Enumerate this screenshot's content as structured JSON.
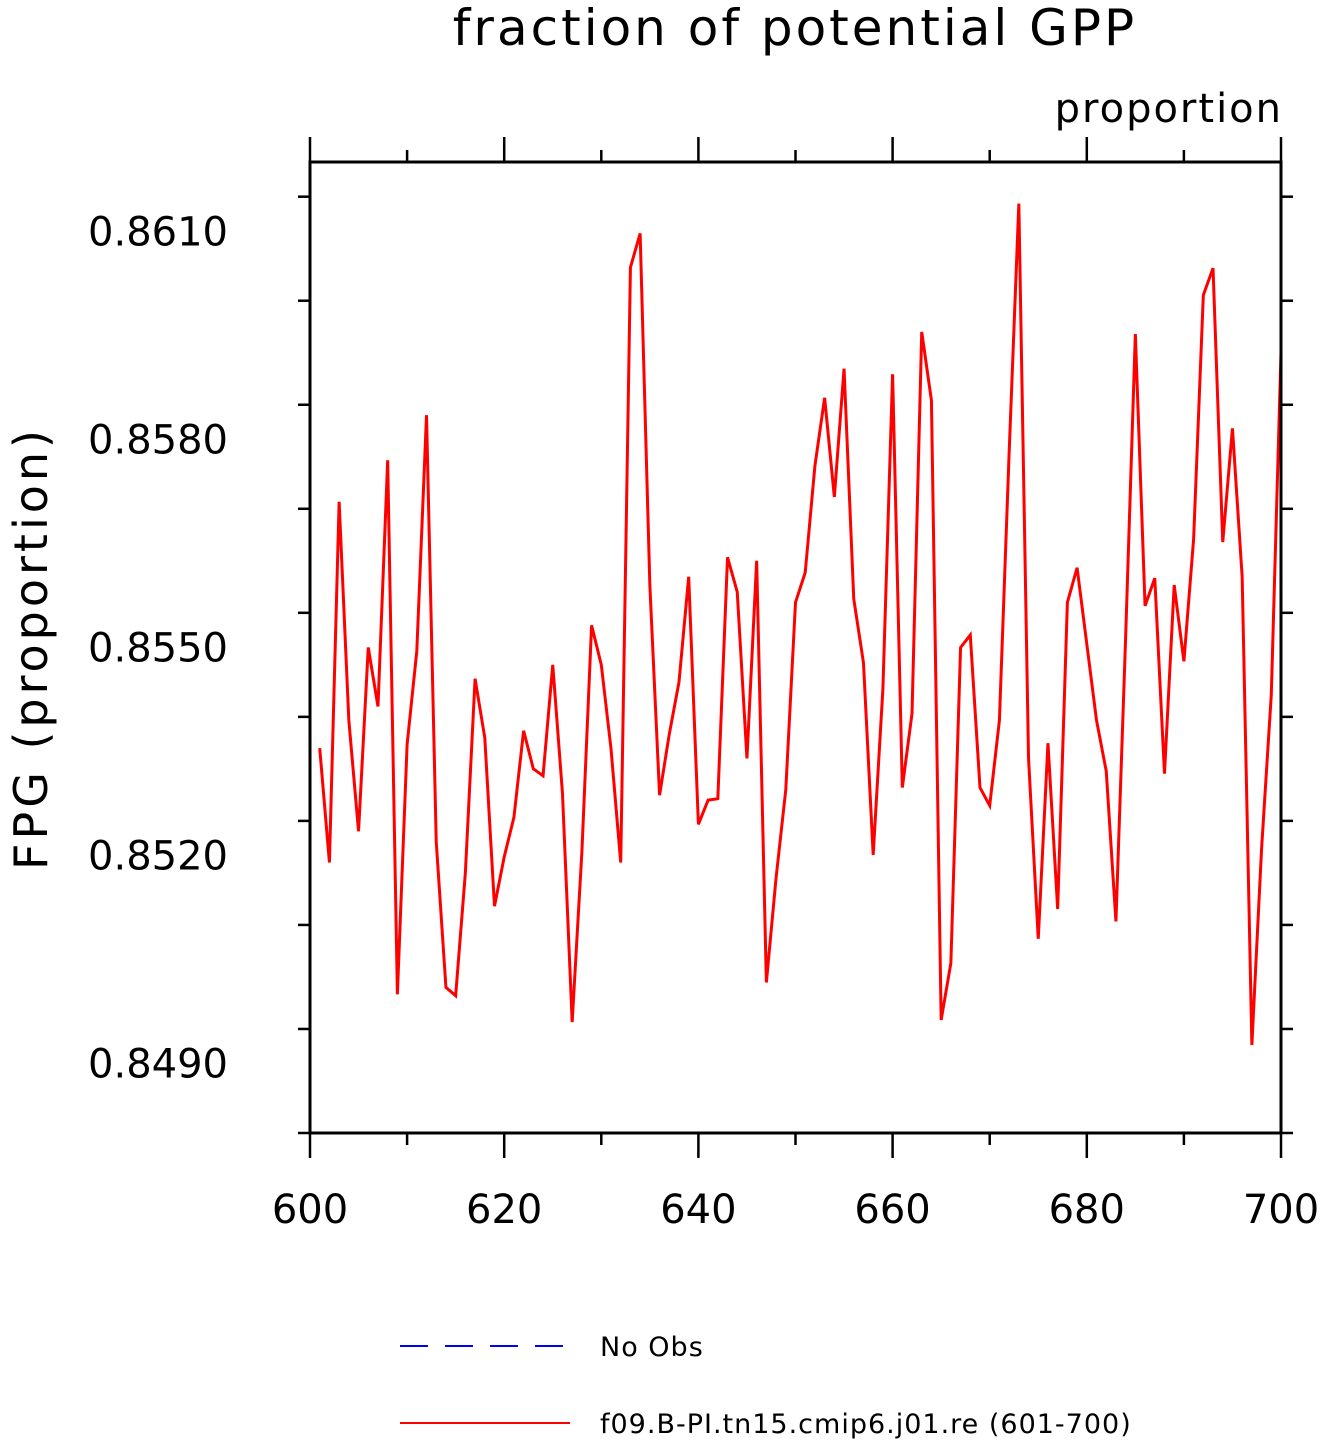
{
  "chart_data": {
    "type": "line",
    "title": "fraction of potential GPP",
    "subtitle": "proportion",
    "ylabel": "FPG   (proportion)",
    "xlabel": "",
    "xlim": [
      600,
      700
    ],
    "ylim": [
      0.848,
      0.862
    ],
    "xticks": [
      600,
      620,
      640,
      660,
      680,
      700
    ],
    "xtick_labels": [
      "600",
      "620",
      "640",
      "660",
      "680",
      "700"
    ],
    "yticks": [
      0.849,
      0.852,
      0.855,
      0.858,
      0.861
    ],
    "ytick_labels": [
      "0.8490",
      "0.8520",
      "0.8550",
      "0.8580",
      "0.8610"
    ],
    "legend_position": "bottom",
    "series": [
      {
        "name": "No Obs",
        "color": "#0000ff",
        "style": "dashed",
        "x": [],
        "values": []
      },
      {
        "name": "f09.B-PI.tn15.cmip6.j01.re (601-700)",
        "color": "#ff0000",
        "style": "solid",
        "x": [
          601,
          602,
          603,
          604,
          605,
          606,
          607,
          608,
          609,
          610,
          611,
          612,
          613,
          614,
          615,
          616,
          617,
          618,
          619,
          620,
          621,
          622,
          623,
          624,
          625,
          626,
          627,
          628,
          629,
          630,
          631,
          632,
          633,
          634,
          635,
          636,
          637,
          638,
          639,
          640,
          641,
          642,
          643,
          644,
          645,
          646,
          647,
          648,
          649,
          650,
          651,
          652,
          653,
          654,
          655,
          656,
          657,
          658,
          659,
          660,
          661,
          662,
          663,
          664,
          665,
          666,
          667,
          668,
          669,
          670,
          671,
          672,
          673,
          674,
          675,
          676,
          677,
          678,
          679,
          680,
          681,
          682,
          683,
          684,
          685,
          686,
          687,
          688,
          689,
          690,
          691,
          692,
          693,
          694,
          695,
          696,
          697,
          698,
          699,
          700
        ],
        "values": [
          0.85355,
          0.8519,
          0.8571,
          0.85395,
          0.85235,
          0.855,
          0.85415,
          0.8577,
          0.85,
          0.8536,
          0.85495,
          0.85835,
          0.8522,
          0.8501,
          0.84998,
          0.85175,
          0.85455,
          0.8537,
          0.85127,
          0.85198,
          0.85255,
          0.8538,
          0.85325,
          0.85315,
          0.85475,
          0.8529,
          0.8496,
          0.85205,
          0.85532,
          0.85475,
          0.85354,
          0.8519,
          0.86048,
          0.86097,
          0.8559,
          0.85287,
          0.85375,
          0.8545,
          0.85602,
          0.85245,
          0.8528,
          0.85282,
          0.8563,
          0.8558,
          0.8534,
          0.85625,
          0.85017,
          0.85168,
          0.85295,
          0.85565,
          0.85608,
          0.85762,
          0.8586,
          0.85717,
          0.85902,
          0.8557,
          0.85478,
          0.85201,
          0.8544,
          0.85894,
          0.85298,
          0.85405,
          0.85955,
          0.85856,
          0.84963,
          0.85045,
          0.855,
          0.85518,
          0.85298,
          0.85272,
          0.85395,
          0.8578,
          0.8614,
          0.8534,
          0.8508,
          0.85362,
          0.85123,
          0.85565,
          0.85615,
          0.85505,
          0.85395,
          0.85322,
          0.85105,
          0.85515,
          0.85952,
          0.8556,
          0.856,
          0.85318,
          0.8559,
          0.8548,
          0.85656,
          0.86008,
          0.86047,
          0.85652,
          0.85816,
          0.85602,
          0.84927,
          0.8521,
          0.85432,
          0.85925
        ]
      }
    ]
  }
}
